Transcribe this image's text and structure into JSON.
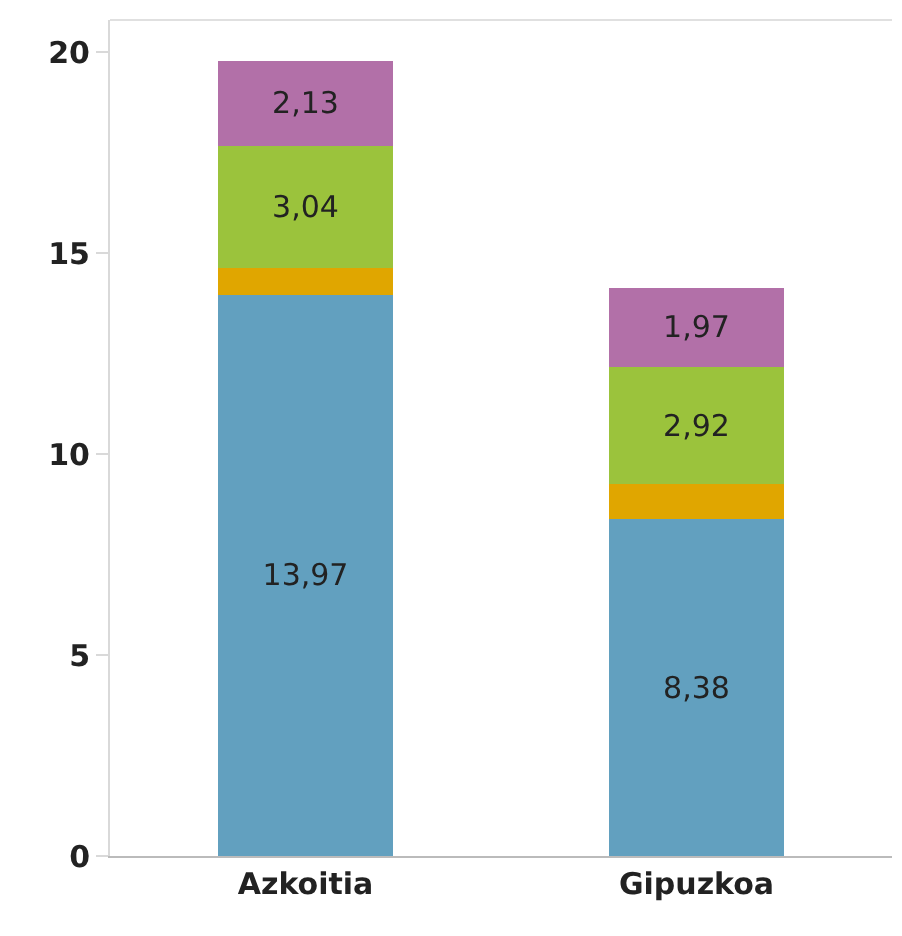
{
  "chart_data": {
    "type": "bar",
    "stacked": true,
    "categories": [
      "Azkoitia",
      "Gipuzkoa"
    ],
    "series": [
      {
        "color": "#62a0bf",
        "values": [
          13.97,
          8.38
        ],
        "value_labels": [
          "13,97",
          "8,38"
        ]
      },
      {
        "color": "#e0a600",
        "values": [
          0.65,
          0.87
        ],
        "value_labels": [
          null,
          null
        ]
      },
      {
        "color": "#9bc33c",
        "values": [
          3.04,
          2.92
        ],
        "value_labels": [
          "3,04",
          "2,92"
        ]
      },
      {
        "color": "#b270a8",
        "values": [
          2.13,
          1.97
        ],
        "value_labels": [
          "2,13",
          "1,97"
        ]
      }
    ],
    "ylim": [
      0,
      20.8
    ],
    "yticks": [
      0,
      5,
      10,
      15,
      20
    ]
  }
}
